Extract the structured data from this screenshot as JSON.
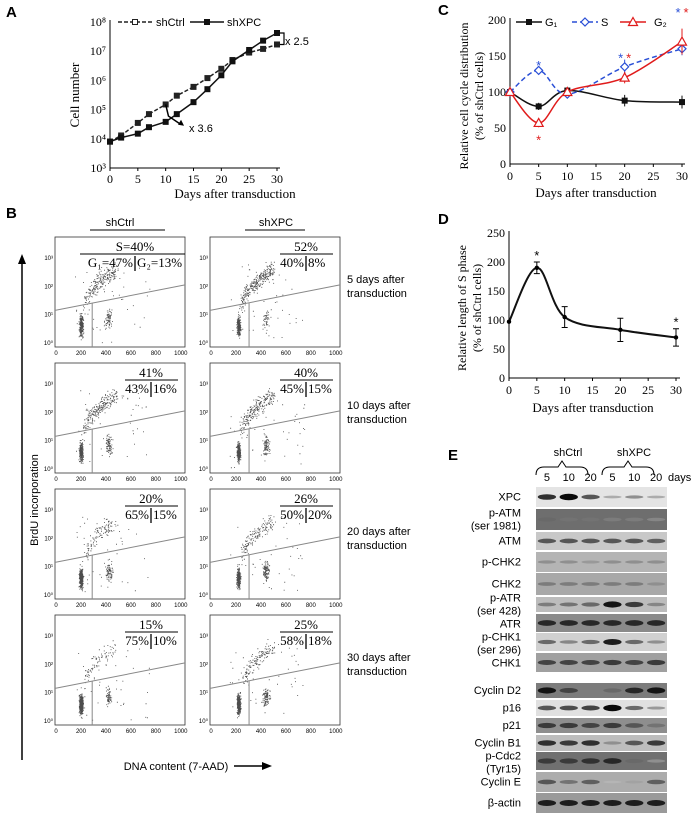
{
  "panels": {
    "a": "A",
    "b": "B",
    "c": "C",
    "d": "D",
    "e": "E"
  },
  "chart_data": [
    {
      "panel": "A",
      "type": "line",
      "xlabel": "Days after transduction",
      "ylabel": "Cell number",
      "xlim": [
        0,
        30
      ],
      "xticks": [
        "0",
        "5",
        "10",
        "15",
        "20",
        "25",
        "30"
      ],
      "ylim": [
        1000,
        100000000
      ],
      "yscale": "log",
      "yticks": [
        "10³",
        "10⁴",
        "10⁵",
        "10⁶",
        "10⁷",
        "10⁸"
      ],
      "legend": "top",
      "series": [
        {
          "name": "shCtrl",
          "style": "dashed",
          "marker": "open-square",
          "color": "#222222",
          "x": [
            0,
            2,
            5,
            7,
            10,
            12,
            15,
            17.5,
            20,
            22,
            25,
            27.5,
            30
          ],
          "y": [
            8000,
            13000,
            35000,
            70000,
            150000,
            300000,
            600000,
            1200000,
            2500000,
            5000000,
            9000000,
            12000000,
            17000000
          ]
        },
        {
          "name": "shXPC",
          "style": "solid",
          "marker": "filled-square",
          "color": "#111111",
          "x": [
            0,
            2,
            5,
            7,
            10,
            12,
            15,
            17.5,
            20,
            22,
            25,
            27.5,
            30
          ],
          "y": [
            8000,
            11000,
            15000,
            25000,
            38000,
            70000,
            180000,
            500000,
            1500000,
            4500000,
            11000000,
            23000000,
            42000000
          ]
        }
      ],
      "annotations": [
        "x 3.6",
        "x 2.5"
      ]
    },
    {
      "panel": "C",
      "type": "line",
      "xlabel": "Days after transduction",
      "ylabel": [
        "Relative cell cycle distribution",
        "(% of shCtrl cells)"
      ],
      "xlim": [
        0,
        30
      ],
      "xticks": [
        "0",
        "5",
        "10",
        "15",
        "20",
        "25",
        "30"
      ],
      "ylim": [
        0,
        200
      ],
      "yticks": [
        "0",
        "50",
        "100",
        "150",
        "200"
      ],
      "legend": "top",
      "series": [
        {
          "name": "G₁",
          "color": "#111111",
          "style": "solid",
          "marker": "filled-square",
          "x": [
            0,
            5,
            10,
            20,
            30
          ],
          "y": [
            100,
            80,
            102,
            88,
            86
          ],
          "err": [
            0,
            5,
            5,
            8,
            9
          ]
        },
        {
          "name": "S",
          "color": "#2a4fd6",
          "style": "dashed",
          "marker": "open-diamond",
          "x": [
            0,
            5,
            10,
            20,
            30
          ],
          "y": [
            100,
            130,
            97,
            135,
            160
          ],
          "err": [
            0,
            5,
            4,
            10,
            9
          ]
        },
        {
          "name": "G₂",
          "color": "#e01b1b",
          "style": "solid",
          "marker": "open-triangle",
          "x": [
            0,
            5,
            10,
            20,
            30
          ],
          "y": [
            100,
            57,
            100,
            120,
            170
          ],
          "err": [
            0,
            6,
            5,
            8,
            18
          ]
        }
      ],
      "significance": [
        {
          "x": 5,
          "series": "S",
          "position": "above"
        },
        {
          "x": 5,
          "series": "G₂",
          "position": "below"
        },
        {
          "x": 20,
          "series": "S",
          "position": "above"
        },
        {
          "x": 20,
          "series": "G₂",
          "position": "above"
        },
        {
          "x": 30,
          "series": "S",
          "position": "above"
        },
        {
          "x": 30,
          "series": "G₂",
          "position": "above"
        }
      ],
      "star": "*"
    },
    {
      "panel": "D",
      "type": "line",
      "xlabel": "Days after transduction",
      "ylabel": [
        "Relative length of S phase",
        "(% of shCtrl cells)"
      ],
      "xlim": [
        0,
        30
      ],
      "xticks": [
        "0",
        "5",
        "10",
        "15",
        "20",
        "25",
        "30"
      ],
      "ylim": [
        0,
        250
      ],
      "yticks": [
        "0",
        "50",
        "100",
        "150",
        "200",
        "250"
      ],
      "series": [
        {
          "x": [
            0,
            5,
            10,
            20,
            30
          ],
          "y": [
            97,
            190,
            105,
            83,
            70
          ],
          "err": [
            0,
            10,
            18,
            20,
            15
          ],
          "color": "#111111"
        }
      ],
      "significance_x": [
        5,
        30
      ],
      "star": "*"
    },
    {
      "panel": "B",
      "type": "scatter",
      "xlabel": "DNA content (7-AAD)",
      "ylabel": "BrdU incorporation",
      "columns": [
        "shCtrl",
        "shXPC"
      ],
      "xticks": [
        "0",
        "200",
        "400",
        "600",
        "800",
        "1000"
      ],
      "yticks": [
        "10⁰",
        "10¹",
        "10²",
        "10³"
      ],
      "rows": [
        {
          "label": [
            "5 days after",
            "transduction"
          ],
          "plots": [
            {
              "S": "S=40%",
              "G1": "G₁=47%",
              "G2": "G₂=13%",
              "fractions": [
                47,
                40,
                13
              ]
            },
            {
              "S": "52%",
              "G1": "40%",
              "G2": "8%",
              "fractions": [
                40,
                52,
                8
              ]
            }
          ]
        },
        {
          "label": [
            "10 days after",
            "transduction"
          ],
          "plots": [
            {
              "S": "41%",
              "G1": "43%",
              "G2": "16%",
              "fractions": [
                43,
                41,
                16
              ]
            },
            {
              "S": "40%",
              "G1": "45%",
              "G2": "15%",
              "fractions": [
                45,
                40,
                15
              ]
            }
          ]
        },
        {
          "label": [
            "20 days after",
            "transduction"
          ],
          "plots": [
            {
              "S": "20%",
              "G1": "65%",
              "G2": "15%",
              "fractions": [
                65,
                20,
                15
              ]
            },
            {
              "S": "26%",
              "G1": "50%",
              "G2": "20%",
              "fractions": [
                50,
                26,
                20
              ]
            }
          ]
        },
        {
          "label": [
            "30 days after",
            "transduction"
          ],
          "plots": [
            {
              "S": "15%",
              "G1": "75%",
              "G2": "10%",
              "fractions": [
                75,
                15,
                10
              ]
            },
            {
              "S": "25%",
              "G1": "58%",
              "G2": "18%",
              "fractions": [
                58,
                25,
                18
              ]
            }
          ]
        }
      ]
    },
    {
      "panel": "E",
      "type": "table",
      "groups": [
        "shCtrl",
        "shXPC"
      ],
      "lanes": [
        "5",
        "10",
        "20",
        "5",
        "10",
        "20"
      ],
      "lane_unit": "days",
      "blots": [
        {
          "label": [
            "XPC"
          ],
          "bg": "#e4e4e4",
          "bands": [
            0.8,
            1.0,
            0.6,
            0.15,
            0.3,
            0.15
          ]
        },
        {
          "label": [
            "p-ATM",
            "(ser 1981)"
          ],
          "bg": "#6e6e6e",
          "bands": [
            0.5,
            0.45,
            0.45,
            0.4,
            0.4,
            0.35
          ]
        },
        {
          "label": [
            "ATM"
          ],
          "bg": "#c8c8c8",
          "bands": [
            0.6,
            0.6,
            0.6,
            0.6,
            0.6,
            0.55
          ]
        },
        {
          "label": [
            "p-CHK2"
          ],
          "bg": "#b4b4b4",
          "bands": [
            0.3,
            0.3,
            0.25,
            0.3,
            0.3,
            0.3
          ]
        },
        {
          "label": [
            "CHK2"
          ],
          "bg": "#a8a8a8",
          "bands": [
            0.4,
            0.4,
            0.4,
            0.4,
            0.4,
            0.3
          ]
        },
        {
          "label": [
            "p-ATR",
            "(ser 428)"
          ],
          "bg": "#bcbcbc",
          "bands": [
            0.4,
            0.45,
            0.5,
            0.95,
            0.75,
            0.35
          ]
        },
        {
          "label": [
            "ATR"
          ],
          "bg": "#8a8a8a",
          "bands": [
            0.85,
            0.85,
            0.85,
            0.85,
            0.85,
            0.85
          ]
        },
        {
          "label": [
            "p-CHK1",
            "(ser 296)"
          ],
          "bg": "#d0d0d0",
          "bands": [
            0.5,
            0.35,
            0.5,
            0.9,
            0.5,
            0.3
          ]
        },
        {
          "label": [
            "CHK1"
          ],
          "bg": "#a0a0a0",
          "bands": [
            0.7,
            0.7,
            0.7,
            0.75,
            0.7,
            0.75
          ]
        },
        {
          "label": [
            "Cyclin D2"
          ],
          "bg": "#7c7c7c",
          "bands": [
            0.95,
            0.7,
            0.4,
            0.5,
            0.85,
            0.95
          ]
        },
        {
          "label": [
            "p16"
          ],
          "bg": "#e0e0e0",
          "bands": [
            0.6,
            0.65,
            0.7,
            1.0,
            0.5,
            0.25
          ]
        },
        {
          "label": [
            "p21"
          ],
          "bg": "#8e8e8e",
          "bands": [
            0.75,
            0.75,
            0.7,
            0.75,
            0.6,
            0.45
          ]
        },
        {
          "label": [
            "Cyclin B1"
          ],
          "bg": "#bdbdbd",
          "bands": [
            0.8,
            0.75,
            0.8,
            0.3,
            0.6,
            0.75
          ]
        },
        {
          "label": [
            "p-Cdc2",
            "(Tyr15)"
          ],
          "bg": "#707070",
          "bands": [
            0.75,
            0.75,
            0.8,
            0.85,
            0.5,
            0.3
          ]
        },
        {
          "label": [
            "Cyclin E"
          ],
          "bg": "#acacac",
          "bands": [
            0.6,
            0.45,
            0.55,
            0.1,
            0.2,
            0.55
          ]
        },
        {
          "label": [
            "β-actin"
          ],
          "bg": "#9a9a9a",
          "bands": [
            0.9,
            0.9,
            0.9,
            0.9,
            0.9,
            0.9
          ]
        }
      ]
    }
  ]
}
